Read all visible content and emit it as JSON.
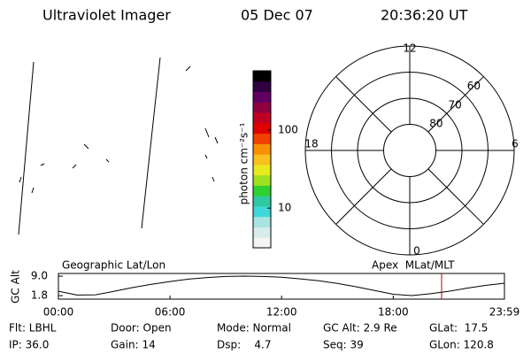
{
  "header": {
    "title": "Ultraviolet Imager",
    "date": "05 Dec 07",
    "time": "20:36:20 UT"
  },
  "colorbar": {
    "label": "photon cm⁻²s⁻¹",
    "log": true,
    "zlim": [
      3.1,
      575
    ],
    "zticks": [
      10,
      100
    ],
    "colors": [
      "#f4f4f4",
      "#d8ecec",
      "#a8e4e4",
      "#40d8d8",
      "#30c8a0",
      "#30d030",
      "#a0e020",
      "#e8e820",
      "#f8c020",
      "#f89000",
      "#f04000",
      "#e00000",
      "#c00020",
      "#900040",
      "#600060",
      "#300040",
      "#000000"
    ]
  },
  "polar": {
    "mlt_labels": {
      "top": "12",
      "left": "18",
      "right": "6",
      "bottom": "0"
    },
    "lat_range": [
      90,
      50
    ],
    "lat_circles": [
      80,
      70,
      60,
      50
    ],
    "lat_ticks": [
      80,
      70,
      60
    ]
  },
  "chart_data": {
    "type": "line",
    "title_left": "Geographic Lat/Lon",
    "title_right": "Apex  MLat/MLT",
    "ylabel": "GC Alt",
    "x": [
      0,
      1,
      2,
      3,
      4,
      5,
      6,
      7,
      8,
      9,
      10,
      11,
      12,
      13,
      14,
      15,
      16,
      17,
      18,
      19,
      20,
      21,
      22,
      23,
      23.98
    ],
    "values": [
      3.4,
      2.0,
      2.1,
      3.4,
      4.8,
      6.0,
      7.0,
      7.9,
      8.5,
      8.9,
      9.0,
      8.9,
      8.6,
      8.0,
      7.3,
      6.3,
      5.1,
      3.7,
      2.3,
      1.8,
      2.5,
      3.4,
      4.6,
      5.6,
      6.4
    ],
    "color": "#000000",
    "xlim": [
      0,
      23.98
    ],
    "ylim": [
      0.5,
      10.0
    ],
    "xticks": [
      {
        "value": 0,
        "label": "00:00"
      },
      {
        "value": 6,
        "label": "06:00"
      },
      {
        "value": 12,
        "label": "12:00"
      },
      {
        "value": 18,
        "label": "18:00"
      },
      {
        "value": 23.98,
        "label": "23:59"
      }
    ],
    "yticks": [
      {
        "value": 9,
        "label": "9.0"
      },
      1.8
    ],
    "marker_x": 20.6,
    "marker_color": "#c00000"
  },
  "footer": {
    "rows": [
      [
        "Flt: LBHL",
        "Door: Open",
        "Mode: Normal",
        "GC Alt: 2.9 Re",
        "GLat:  17.5"
      ],
      [
        "IP: 36.0",
        "Gain: 14",
        "Dsp:    4.7",
        "Seq: 39",
        "GLon: 120.8"
      ]
    ]
  }
}
